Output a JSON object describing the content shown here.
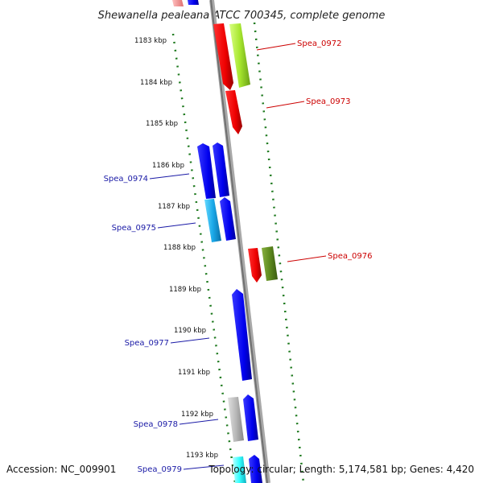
{
  "title": "Shewanella pealeana ATCC 700345, complete genome",
  "footer": {
    "accession": "Accession: NC_009901",
    "topology": "Topology: circular; Length: 5,174,581 bp; Genes: 4,420"
  },
  "colors": {
    "forward_label": "#cc0000",
    "reverse_label": "#1a1aa6",
    "backbone": "#888888",
    "tick": "#1f7a1f"
  },
  "chart_data": {
    "type": "genome-map",
    "units": "kbp",
    "ticks": [
      {
        "kbp": 1183,
        "label": "1183 kbp"
      },
      {
        "kbp": 1184,
        "label": "1184 kbp"
      },
      {
        "kbp": 1185,
        "label": "1185 kbp"
      },
      {
        "kbp": 1186,
        "label": "1186 kbp"
      },
      {
        "kbp": 1187,
        "label": "1187 kbp"
      },
      {
        "kbp": 1188,
        "label": "1188 kbp"
      },
      {
        "kbp": 1189,
        "label": "1189 kbp"
      },
      {
        "kbp": 1190,
        "label": "1190 kbp"
      },
      {
        "kbp": 1191,
        "label": "1191 kbp"
      },
      {
        "kbp": 1192,
        "label": "1192 kbp"
      },
      {
        "kbp": 1193,
        "label": "1193 kbp"
      }
    ],
    "labeled_genes": [
      {
        "name": "Spea_0972",
        "strand": "+"
      },
      {
        "name": "Spea_0973",
        "strand": "+"
      },
      {
        "name": "Spea_0974",
        "strand": "-"
      },
      {
        "name": "Spea_0975",
        "strand": "-"
      },
      {
        "name": "Spea_0976",
        "strand": "+"
      },
      {
        "name": "Spea_0977",
        "strand": "-"
      },
      {
        "name": "Spea_0978",
        "strand": "-"
      },
      {
        "name": "Spea_0979",
        "strand": "-"
      }
    ]
  }
}
